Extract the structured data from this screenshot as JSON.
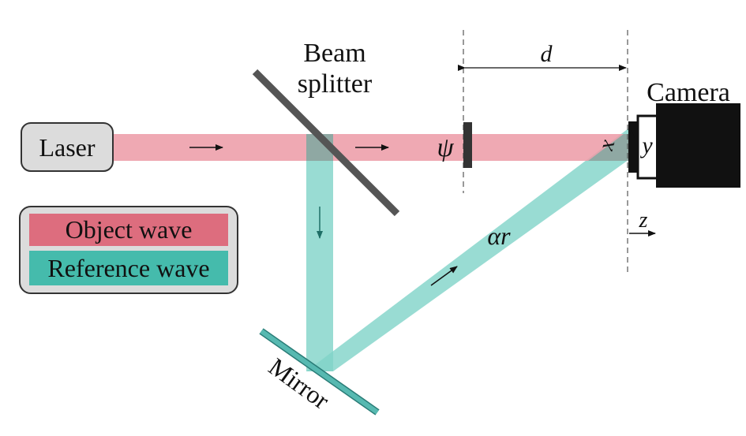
{
  "labels": {
    "laser": "Laser",
    "beam_splitter_line1": "Beam",
    "beam_splitter_line2": "splitter",
    "camera": "Camera",
    "mirror": "Mirror",
    "psi": "ψ",
    "d": "d",
    "x": "x",
    "y": "y",
    "z": "z",
    "alpha_r": "αr"
  },
  "legend": {
    "object_wave": "Object wave",
    "reference_wave": "Reference wave"
  },
  "colors": {
    "object_beam": "#ec9aa6",
    "reference_beam": "#7fd3c8",
    "overlap": "#8fa8a3",
    "object_legend": "#dd6d7e",
    "reference_legend": "#45bbac",
    "legend_box": "#dcdcdc",
    "beam_splitter": "#555555",
    "mirror": "#57b9b1",
    "camera_body": "#111111",
    "dashed_line": "#555555"
  }
}
